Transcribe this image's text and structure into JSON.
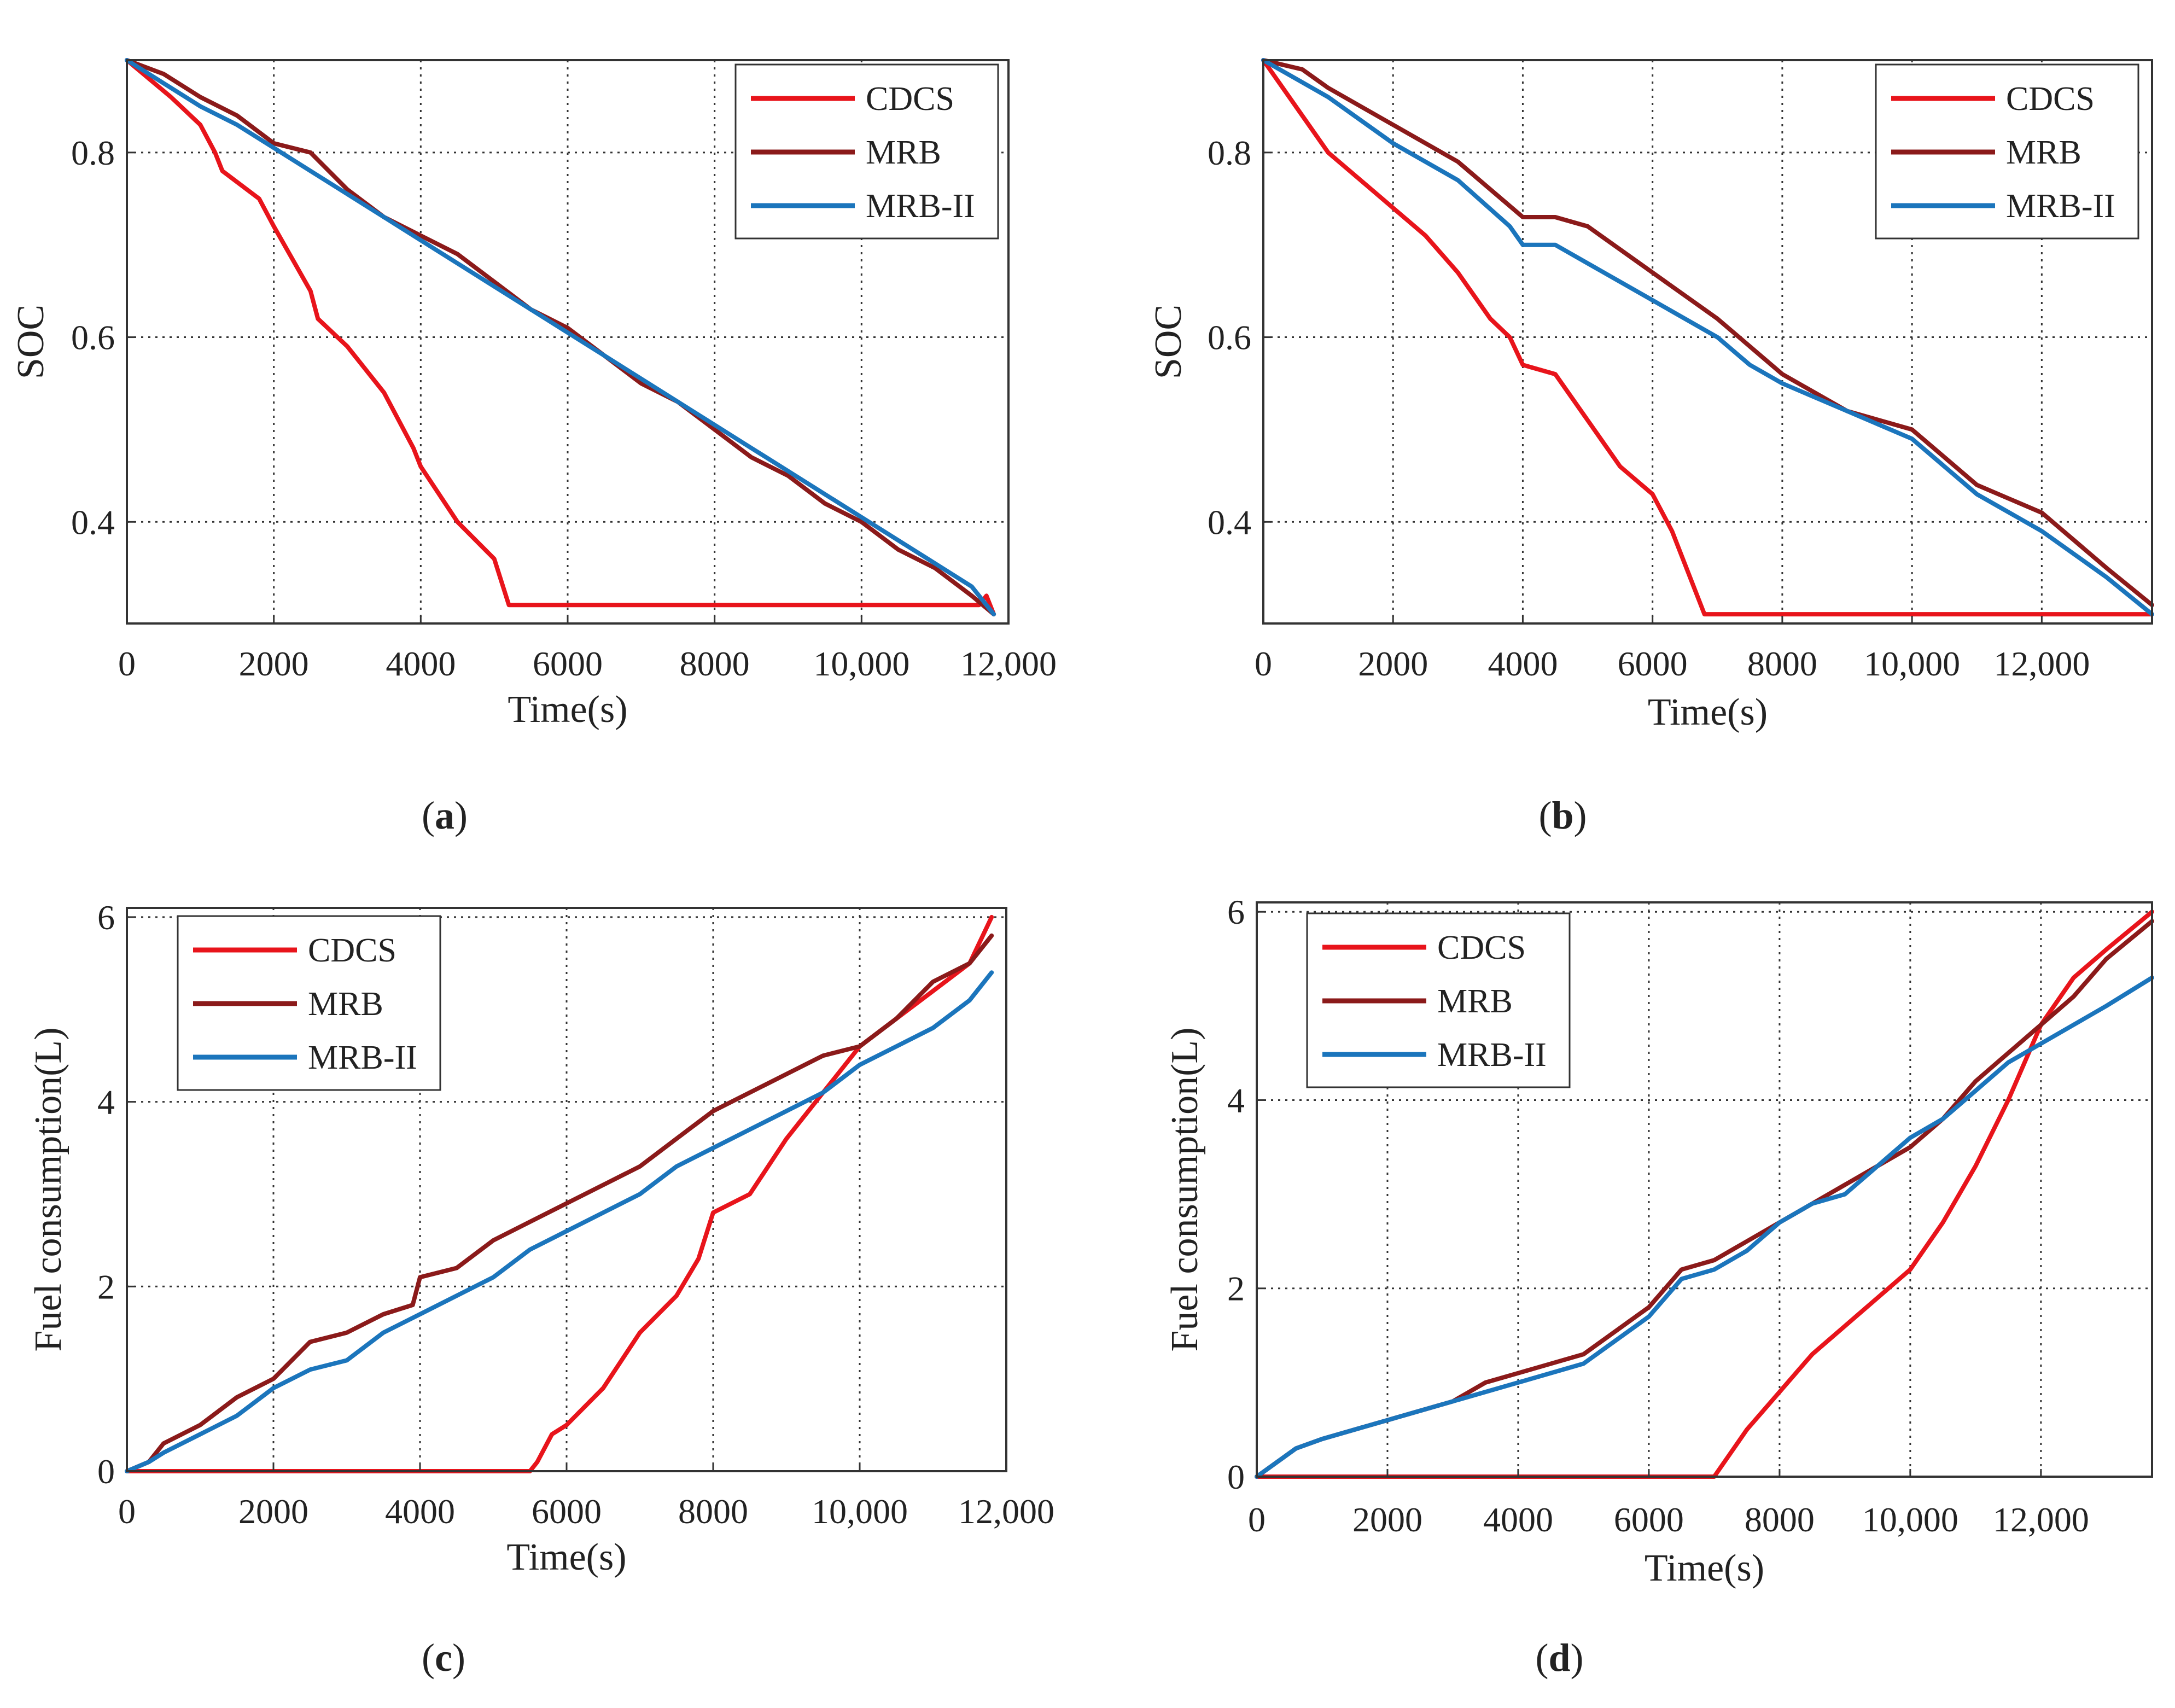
{
  "colors": {
    "CDCS": "#e8141b",
    "MRB": "#8b1a1a",
    "MRB-II": "#1b75bc"
  },
  "chart_data": [
    {
      "id": "a",
      "caption": "(a)",
      "type": "line",
      "xlabel": "Time(s)",
      "ylabel": "SOC",
      "xlim": [
        0,
        12000
      ],
      "ylim": [
        0.29,
        0.9
      ],
      "xticks": [
        0,
        2000,
        4000,
        6000,
        8000,
        10000,
        12000
      ],
      "xtick_labels": [
        "0",
        "2000",
        "4000",
        "6000",
        "8000",
        "10,000",
        "12,000"
      ],
      "yticks": [
        0.4,
        0.6,
        0.8
      ],
      "ytick_labels": [
        "0.4",
        "0.6",
        "0.8"
      ],
      "grid": true,
      "legend_position": "top-right",
      "series": [
        {
          "name": "CDCS",
          "x": [
            0,
            300,
            600,
            1000,
            1200,
            1300,
            1800,
            2000,
            2500,
            2600,
            3000,
            3500,
            3900,
            4000,
            4500,
            5000,
            5200,
            6000,
            8000,
            10000,
            11600,
            11700,
            11800
          ],
          "y": [
            0.9,
            0.88,
            0.86,
            0.83,
            0.8,
            0.78,
            0.75,
            0.72,
            0.65,
            0.62,
            0.59,
            0.54,
            0.48,
            0.46,
            0.4,
            0.36,
            0.31,
            0.31,
            0.31,
            0.31,
            0.31,
            0.32,
            0.3
          ]
        },
        {
          "name": "MRB",
          "x": [
            0,
            500,
            1000,
            1500,
            2000,
            2500,
            3000,
            3500,
            4000,
            4500,
            5000,
            5500,
            6000,
            6500,
            7000,
            7500,
            8000,
            8500,
            9000,
            9500,
            10000,
            10500,
            11000,
            11500,
            11800
          ],
          "y": [
            0.9,
            0.885,
            0.86,
            0.84,
            0.81,
            0.8,
            0.76,
            0.73,
            0.71,
            0.69,
            0.66,
            0.63,
            0.61,
            0.58,
            0.55,
            0.53,
            0.5,
            0.47,
            0.45,
            0.42,
            0.4,
            0.37,
            0.35,
            0.32,
            0.3
          ]
        },
        {
          "name": "MRB-II",
          "x": [
            0,
            500,
            1000,
            1500,
            2000,
            2500,
            3000,
            3500,
            4000,
            4500,
            5000,
            5500,
            6000,
            6500,
            7000,
            7500,
            8000,
            8500,
            9000,
            9500,
            10000,
            10500,
            11000,
            11500,
            11800
          ],
          "y": [
            0.9,
            0.875,
            0.85,
            0.83,
            0.805,
            0.78,
            0.755,
            0.73,
            0.705,
            0.68,
            0.655,
            0.63,
            0.605,
            0.58,
            0.555,
            0.53,
            0.505,
            0.48,
            0.455,
            0.43,
            0.405,
            0.38,
            0.355,
            0.33,
            0.3
          ]
        }
      ]
    },
    {
      "id": "b",
      "caption": "(b)",
      "type": "line",
      "xlabel": "Time(s)",
      "ylabel": "SOC",
      "xlim": [
        0,
        13700
      ],
      "ylim": [
        0.29,
        0.9
      ],
      "xticks": [
        0,
        2000,
        4000,
        6000,
        8000,
        10000,
        12000
      ],
      "xtick_labels": [
        "0",
        "2000",
        "4000",
        "6000",
        "8000",
        "10,000",
        "12,000"
      ],
      "yticks": [
        0.4,
        0.6,
        0.8
      ],
      "ytick_labels": [
        "0.4",
        "0.6",
        "0.8"
      ],
      "grid": true,
      "legend_position": "top-right",
      "series": [
        {
          "name": "CDCS",
          "x": [
            0,
            300,
            700,
            1000,
            1500,
            2000,
            2500,
            3000,
            3500,
            3800,
            4000,
            4500,
            5000,
            5500,
            6000,
            6300,
            6800,
            7000,
            9000,
            11000,
            13700
          ],
          "y": [
            0.9,
            0.87,
            0.83,
            0.8,
            0.77,
            0.74,
            0.71,
            0.67,
            0.62,
            0.6,
            0.57,
            0.56,
            0.51,
            0.46,
            0.43,
            0.39,
            0.3,
            0.3,
            0.3,
            0.3,
            0.3
          ]
        },
        {
          "name": "MRB",
          "x": [
            0,
            600,
            1000,
            2000,
            3000,
            4000,
            4500,
            5000,
            6000,
            7000,
            7500,
            8000,
            9000,
            10000,
            11000,
            12000,
            13000,
            13700
          ],
          "y": [
            0.9,
            0.89,
            0.87,
            0.83,
            0.79,
            0.73,
            0.73,
            0.72,
            0.67,
            0.62,
            0.59,
            0.56,
            0.52,
            0.5,
            0.44,
            0.41,
            0.35,
            0.31
          ]
        },
        {
          "name": "MRB-II",
          "x": [
            0,
            1000,
            2000,
            3000,
            3800,
            4000,
            4500,
            5000,
            6000,
            7000,
            7500,
            8000,
            9000,
            10000,
            11000,
            12000,
            13000,
            13700
          ],
          "y": [
            0.9,
            0.86,
            0.81,
            0.77,
            0.72,
            0.7,
            0.7,
            0.68,
            0.64,
            0.6,
            0.57,
            0.55,
            0.52,
            0.49,
            0.43,
            0.39,
            0.34,
            0.3
          ]
        }
      ]
    },
    {
      "id": "c",
      "caption": "(c)",
      "type": "line",
      "xlabel": "Time(s)",
      "ylabel": "Fuel consumption(L)",
      "xlim": [
        0,
        12000
      ],
      "ylim": [
        0,
        6.1
      ],
      "xticks": [
        0,
        2000,
        4000,
        6000,
        8000,
        10000,
        12000
      ],
      "xtick_labels": [
        "0",
        "2000",
        "4000",
        "6000",
        "8000",
        "10,000",
        "12,000"
      ],
      "yticks": [
        0,
        2,
        4,
        6
      ],
      "ytick_labels": [
        "0",
        "2",
        "4",
        "6"
      ],
      "grid": true,
      "legend_position": "top-left",
      "series": [
        {
          "name": "CDCS",
          "x": [
            0,
            5500,
            5600,
            5800,
            6000,
            6500,
            7000,
            7500,
            7800,
            8000,
            8500,
            9000,
            9500,
            10000,
            10500,
            11000,
            11500,
            11800
          ],
          "y": [
            0,
            0,
            0.1,
            0.4,
            0.5,
            0.9,
            1.5,
            1.9,
            2.3,
            2.8,
            3.0,
            3.6,
            4.1,
            4.6,
            4.9,
            5.2,
            5.5,
            6.0
          ]
        },
        {
          "name": "MRB",
          "x": [
            0,
            300,
            500,
            1000,
            1500,
            2000,
            2500,
            3000,
            3500,
            3900,
            4000,
            4500,
            5000,
            5500,
            6000,
            6500,
            7000,
            7500,
            8000,
            8500,
            9000,
            9500,
            10000,
            10500,
            11000,
            11500,
            11800
          ],
          "y": [
            0,
            0.1,
            0.3,
            0.5,
            0.8,
            1.0,
            1.4,
            1.5,
            1.7,
            1.8,
            2.1,
            2.2,
            2.5,
            2.7,
            2.9,
            3.1,
            3.3,
            3.6,
            3.9,
            4.1,
            4.3,
            4.5,
            4.6,
            4.9,
            5.3,
            5.5,
            5.8
          ]
        },
        {
          "name": "MRB-II",
          "x": [
            0,
            300,
            500,
            1000,
            1500,
            2000,
            2500,
            3000,
            3500,
            4000,
            4500,
            5000,
            5500,
            6000,
            6500,
            7000,
            7500,
            8000,
            8500,
            9000,
            9500,
            10000,
            10500,
            11000,
            11500,
            11800
          ],
          "y": [
            0,
            0.1,
            0.2,
            0.4,
            0.6,
            0.9,
            1.1,
            1.2,
            1.5,
            1.7,
            1.9,
            2.1,
            2.4,
            2.6,
            2.8,
            3.0,
            3.3,
            3.5,
            3.7,
            3.9,
            4.1,
            4.4,
            4.6,
            4.8,
            5.1,
            5.4
          ]
        }
      ]
    },
    {
      "id": "d",
      "caption": "(d)",
      "type": "line",
      "xlabel": "Time(s)",
      "ylabel": "Fuel consumption(L)",
      "xlim": [
        0,
        13700
      ],
      "ylim": [
        0,
        6.1
      ],
      "xticks": [
        0,
        2000,
        4000,
        6000,
        8000,
        10000,
        12000
      ],
      "xtick_labels": [
        "0",
        "2000",
        "4000",
        "6000",
        "8000",
        "10,000",
        "12,000"
      ],
      "yticks": [
        0,
        2,
        4,
        6
      ],
      "ytick_labels": [
        "0",
        "2",
        "4",
        "6"
      ],
      "grid": true,
      "legend_position": "top-left",
      "series": [
        {
          "name": "CDCS",
          "x": [
            0,
            7000,
            7200,
            7500,
            8000,
            8500,
            9000,
            9500,
            10000,
            10500,
            11000,
            11500,
            12000,
            12500,
            13000,
            13700
          ],
          "y": [
            0,
            0,
            0.2,
            0.5,
            0.9,
            1.3,
            1.6,
            1.9,
            2.2,
            2.7,
            3.3,
            4.0,
            4.8,
            5.3,
            5.6,
            6.0
          ]
        },
        {
          "name": "MRB",
          "x": [
            0,
            400,
            600,
            1000,
            1500,
            2000,
            2500,
            3000,
            3500,
            4000,
            5000,
            6000,
            6500,
            7000,
            7500,
            8000,
            8500,
            9000,
            9500,
            10000,
            10500,
            11000,
            11500,
            12000,
            12500,
            13000,
            13700
          ],
          "y": [
            0,
            0.2,
            0.3,
            0.4,
            0.5,
            0.6,
            0.7,
            0.8,
            1.0,
            1.1,
            1.3,
            1.8,
            2.2,
            2.3,
            2.5,
            2.7,
            2.9,
            3.1,
            3.3,
            3.5,
            3.8,
            4.2,
            4.5,
            4.8,
            5.1,
            5.5,
            5.9
          ]
        },
        {
          "name": "MRB-II",
          "x": [
            0,
            400,
            600,
            1000,
            1500,
            2000,
            2500,
            3000,
            3500,
            4000,
            5000,
            6000,
            6500,
            7000,
            7500,
            8000,
            8500,
            9000,
            9500,
            10000,
            10500,
            11000,
            11500,
            12000,
            12500,
            13000,
            13700
          ],
          "y": [
            0,
            0.2,
            0.3,
            0.4,
            0.5,
            0.6,
            0.7,
            0.8,
            0.9,
            1.0,
            1.2,
            1.7,
            2.1,
            2.2,
            2.4,
            2.7,
            2.9,
            3.0,
            3.3,
            3.6,
            3.8,
            4.1,
            4.4,
            4.6,
            4.8,
            5.0,
            5.3
          ]
        }
      ]
    }
  ]
}
